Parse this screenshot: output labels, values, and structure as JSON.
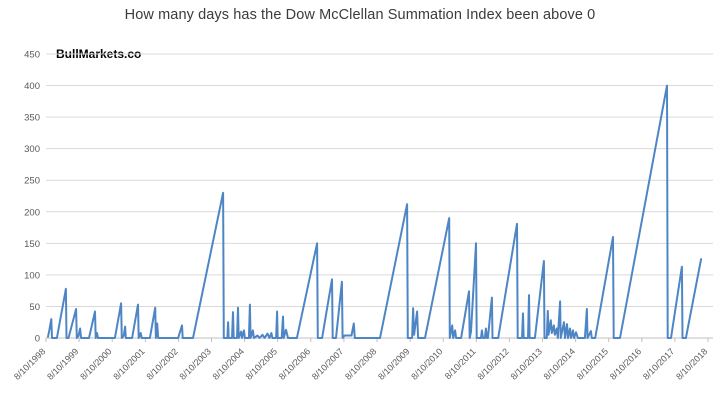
{
  "chart_data": {
    "type": "line",
    "title": "How many days has the Dow McClellan Summation Index been above 0",
    "watermark": "BullMarkets.co",
    "xlabel": "",
    "ylabel": "",
    "legend": "none",
    "grid": "horizontal",
    "ylim": [
      0,
      450
    ],
    "y_tick_step": 50,
    "y_tick_labels": [
      "0",
      "50",
      "100",
      "150",
      "200",
      "250",
      "300",
      "350",
      "400",
      "450"
    ],
    "x_range": [
      1998.6,
      2018.75
    ],
    "x_ticks": [
      {
        "label": "8/10/1998",
        "x": 1998.6
      },
      {
        "label": "8/10/1999",
        "x": 1999.6
      },
      {
        "label": "8/10/2000",
        "x": 2000.6
      },
      {
        "label": "8/10/2001",
        "x": 2001.6
      },
      {
        "label": "8/10/2002",
        "x": 2002.6
      },
      {
        "label": "8/10/2003",
        "x": 2003.6
      },
      {
        "label": "8/10/2004",
        "x": 2004.6
      },
      {
        "label": "8/10/2005",
        "x": 2005.6
      },
      {
        "label": "8/10/2006",
        "x": 2006.6
      },
      {
        "label": "8/10/2007",
        "x": 2007.6
      },
      {
        "label": "8/10/2008",
        "x": 2008.6
      },
      {
        "label": "8/10/2009",
        "x": 2009.6
      },
      {
        "label": "8/10/2010",
        "x": 2010.6
      },
      {
        "label": "8/10/2011",
        "x": 2011.6
      },
      {
        "label": "8/10/2012",
        "x": 2012.6
      },
      {
        "label": "8/10/2013",
        "x": 2013.6
      },
      {
        "label": "8/10/2014",
        "x": 2014.6
      },
      {
        "label": "8/10/2015",
        "x": 2015.6
      },
      {
        "label": "8/10/2016",
        "x": 2016.6
      },
      {
        "label": "8/10/2017",
        "x": 2017.6
      },
      {
        "label": "8/10/2018",
        "x": 2018.6
      }
    ],
    "line_color": "#4e86c5",
    "grid_color": "#d9d9d9",
    "axis_color": "#c0c0c0",
    "tick_text_color": "#595959",
    "title_color": "#3b3b3b",
    "points": [
      [
        1998.66,
        2
      ],
      [
        1998.7,
        12
      ],
      [
        1998.76,
        30
      ],
      [
        1998.78,
        0
      ],
      [
        1998.93,
        0
      ],
      [
        1999.2,
        78
      ],
      [
        1999.22,
        0
      ],
      [
        1999.28,
        0
      ],
      [
        1999.51,
        46
      ],
      [
        1999.53,
        0
      ],
      [
        1999.58,
        3
      ],
      [
        1999.63,
        15
      ],
      [
        1999.66,
        0
      ],
      [
        1999.9,
        0
      ],
      [
        2000.08,
        42
      ],
      [
        2000.1,
        0
      ],
      [
        2000.14,
        8
      ],
      [
        2000.17,
        0
      ],
      [
        2000.68,
        0
      ],
      [
        2000.87,
        55
      ],
      [
        2000.89,
        0
      ],
      [
        2000.95,
        4
      ],
      [
        2000.99,
        18
      ],
      [
        2001.01,
        0
      ],
      [
        2001.2,
        0
      ],
      [
        2001.38,
        53
      ],
      [
        2001.4,
        0
      ],
      [
        2001.46,
        8
      ],
      [
        2001.49,
        0
      ],
      [
        2001.74,
        0
      ],
      [
        2001.9,
        48
      ],
      [
        2001.92,
        0
      ],
      [
        2001.96,
        23
      ],
      [
        2001.99,
        0
      ],
      [
        2002.59,
        0
      ],
      [
        2002.71,
        20
      ],
      [
        2002.73,
        0
      ],
      [
        2003.04,
        0
      ],
      [
        2003.95,
        230
      ],
      [
        2003.97,
        0
      ],
      [
        2004.08,
        0
      ],
      [
        2004.1,
        25
      ],
      [
        2004.12,
        0
      ],
      [
        2004.22,
        0
      ],
      [
        2004.25,
        41
      ],
      [
        2004.27,
        0
      ],
      [
        2004.37,
        0
      ],
      [
        2004.4,
        48
      ],
      [
        2004.42,
        0
      ],
      [
        2004.49,
        10
      ],
      [
        2004.52,
        0
      ],
      [
        2004.58,
        12
      ],
      [
        2004.61,
        0
      ],
      [
        2004.73,
        0
      ],
      [
        2004.76,
        53
      ],
      [
        2004.78,
        0
      ],
      [
        2004.85,
        12
      ],
      [
        2004.88,
        0
      ],
      [
        2004.99,
        4
      ],
      [
        2005.05,
        0
      ],
      [
        2005.14,
        5
      ],
      [
        2005.2,
        0
      ],
      [
        2005.29,
        7
      ],
      [
        2005.35,
        0
      ],
      [
        2005.41,
        8
      ],
      [
        2005.44,
        0
      ],
      [
        2005.55,
        0
      ],
      [
        2005.58,
        42
      ],
      [
        2005.6,
        0
      ],
      [
        2005.72,
        0
      ],
      [
        2005.76,
        34
      ],
      [
        2005.78,
        0
      ],
      [
        2005.85,
        13
      ],
      [
        2005.91,
        0
      ],
      [
        2006.18,
        0
      ],
      [
        2006.79,
        150
      ],
      [
        2006.81,
        0
      ],
      [
        2006.94,
        0
      ],
      [
        2007.24,
        93
      ],
      [
        2007.26,
        0
      ],
      [
        2007.36,
        0
      ],
      [
        2007.54,
        89
      ],
      [
        2007.56,
        0
      ],
      [
        2007.62,
        4
      ],
      [
        2007.83,
        4
      ],
      [
        2007.9,
        23
      ],
      [
        2007.93,
        0
      ],
      [
        2008.69,
        0
      ],
      [
        2009.51,
        212
      ],
      [
        2009.53,
        0
      ],
      [
        2009.66,
        0
      ],
      [
        2009.69,
        47
      ],
      [
        2009.72,
        5
      ],
      [
        2009.81,
        42
      ],
      [
        2009.84,
        0
      ],
      [
        2010.05,
        0
      ],
      [
        2010.78,
        190
      ],
      [
        2010.8,
        0
      ],
      [
        2010.87,
        20
      ],
      [
        2010.9,
        0
      ],
      [
        2010.96,
        12
      ],
      [
        2010.99,
        0
      ],
      [
        2011.14,
        0
      ],
      [
        2011.38,
        74
      ],
      [
        2011.4,
        0
      ],
      [
        2011.44,
        10
      ],
      [
        2011.59,
        150
      ],
      [
        2011.61,
        0
      ],
      [
        2011.74,
        0
      ],
      [
        2011.77,
        12
      ],
      [
        2011.8,
        0
      ],
      [
        2011.86,
        0
      ],
      [
        2011.89,
        15
      ],
      [
        2011.92,
        0
      ],
      [
        2011.95,
        0
      ],
      [
        2012.07,
        64
      ],
      [
        2012.09,
        0
      ],
      [
        2012.26,
        0
      ],
      [
        2012.83,
        181
      ],
      [
        2012.85,
        0
      ],
      [
        2012.98,
        0
      ],
      [
        2013.01,
        39
      ],
      [
        2013.03,
        0
      ],
      [
        2013.16,
        0
      ],
      [
        2013.19,
        68
      ],
      [
        2013.21,
        0
      ],
      [
        2013.37,
        0
      ],
      [
        2013.64,
        122
      ],
      [
        2013.66,
        0
      ],
      [
        2013.73,
        0
      ],
      [
        2013.76,
        43
      ],
      [
        2013.78,
        5
      ],
      [
        2013.85,
        28
      ],
      [
        2013.88,
        8
      ],
      [
        2013.94,
        20
      ],
      [
        2013.97,
        5
      ],
      [
        2014.03,
        15
      ],
      [
        2014.06,
        0
      ],
      [
        2014.13,
        58
      ],
      [
        2014.15,
        0
      ],
      [
        2014.25,
        25
      ],
      [
        2014.28,
        0
      ],
      [
        2014.34,
        22
      ],
      [
        2014.37,
        0
      ],
      [
        2014.43,
        15
      ],
      [
        2014.46,
        0
      ],
      [
        2014.52,
        12
      ],
      [
        2014.55,
        0
      ],
      [
        2014.61,
        9
      ],
      [
        2014.67,
        0
      ],
      [
        2014.88,
        0
      ],
      [
        2014.94,
        46
      ],
      [
        2014.96,
        0
      ],
      [
        2015.06,
        11
      ],
      [
        2015.09,
        0
      ],
      [
        2015.19,
        0
      ],
      [
        2015.73,
        160
      ],
      [
        2015.75,
        0
      ],
      [
        2015.94,
        0
      ],
      [
        2017.36,
        400
      ],
      [
        2017.38,
        0
      ],
      [
        2017.48,
        0
      ],
      [
        2017.81,
        113
      ],
      [
        2017.83,
        0
      ],
      [
        2017.93,
        0
      ],
      [
        2018.39,
        125
      ]
    ]
  }
}
